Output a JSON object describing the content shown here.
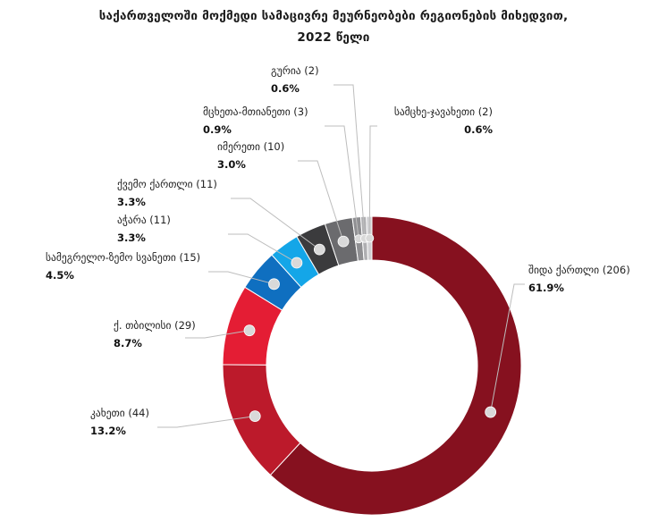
{
  "chart_data": {
    "type": "pie",
    "donut": true,
    "title_lines": [
      "საქართველოში მოქმედი სამაცივრე მეურნეობები რეგიონების მიხედვით,",
      "2022 წელი"
    ],
    "slices": [
      {
        "name": "შიდა ქართლი",
        "count": "206",
        "percent": 61.9,
        "label": "61.9%",
        "color": "#86111f"
      },
      {
        "name": "კახეთი",
        "count": "44",
        "percent": 13.2,
        "label": "13.2%",
        "color": "#bc1a2b"
      },
      {
        "name": "ქ. თბილისი",
        "count": "29",
        "percent": 8.7,
        "label": "8.7%",
        "color": "#e41d34"
      },
      {
        "name": "სამეგრელო-ზემო სვანეთი",
        "count": "15",
        "percent": 4.5,
        "label": "4.5%",
        "color": "#0f6fc0"
      },
      {
        "name": "აჭარა",
        "count": "11",
        "percent": 3.3,
        "label": "3.3%",
        "color": "#14a6e8"
      },
      {
        "name": "ქვემო ქართლი",
        "count": "11",
        "percent": 3.3,
        "label": "3.3%",
        "color": "#3b3b3d"
      },
      {
        "name": "იმერეთი",
        "count": "10",
        "percent": 3.0,
        "label": "3.0%",
        "color": "#6b6b6e"
      },
      {
        "name": "მცხეთა-მთიანეთი",
        "count": "3",
        "percent": 0.9,
        "label": "0.9%",
        "color": "#8f8f92"
      },
      {
        "name": "გურია",
        "count": "2",
        "percent": 0.6,
        "label": "0.6%",
        "color": "#afafb2"
      },
      {
        "name": "სამცხე-ჯავახეთი",
        "count": "2",
        "percent": 0.6,
        "label": "0.6%",
        "color": "#cfcfd2"
      }
    ]
  }
}
